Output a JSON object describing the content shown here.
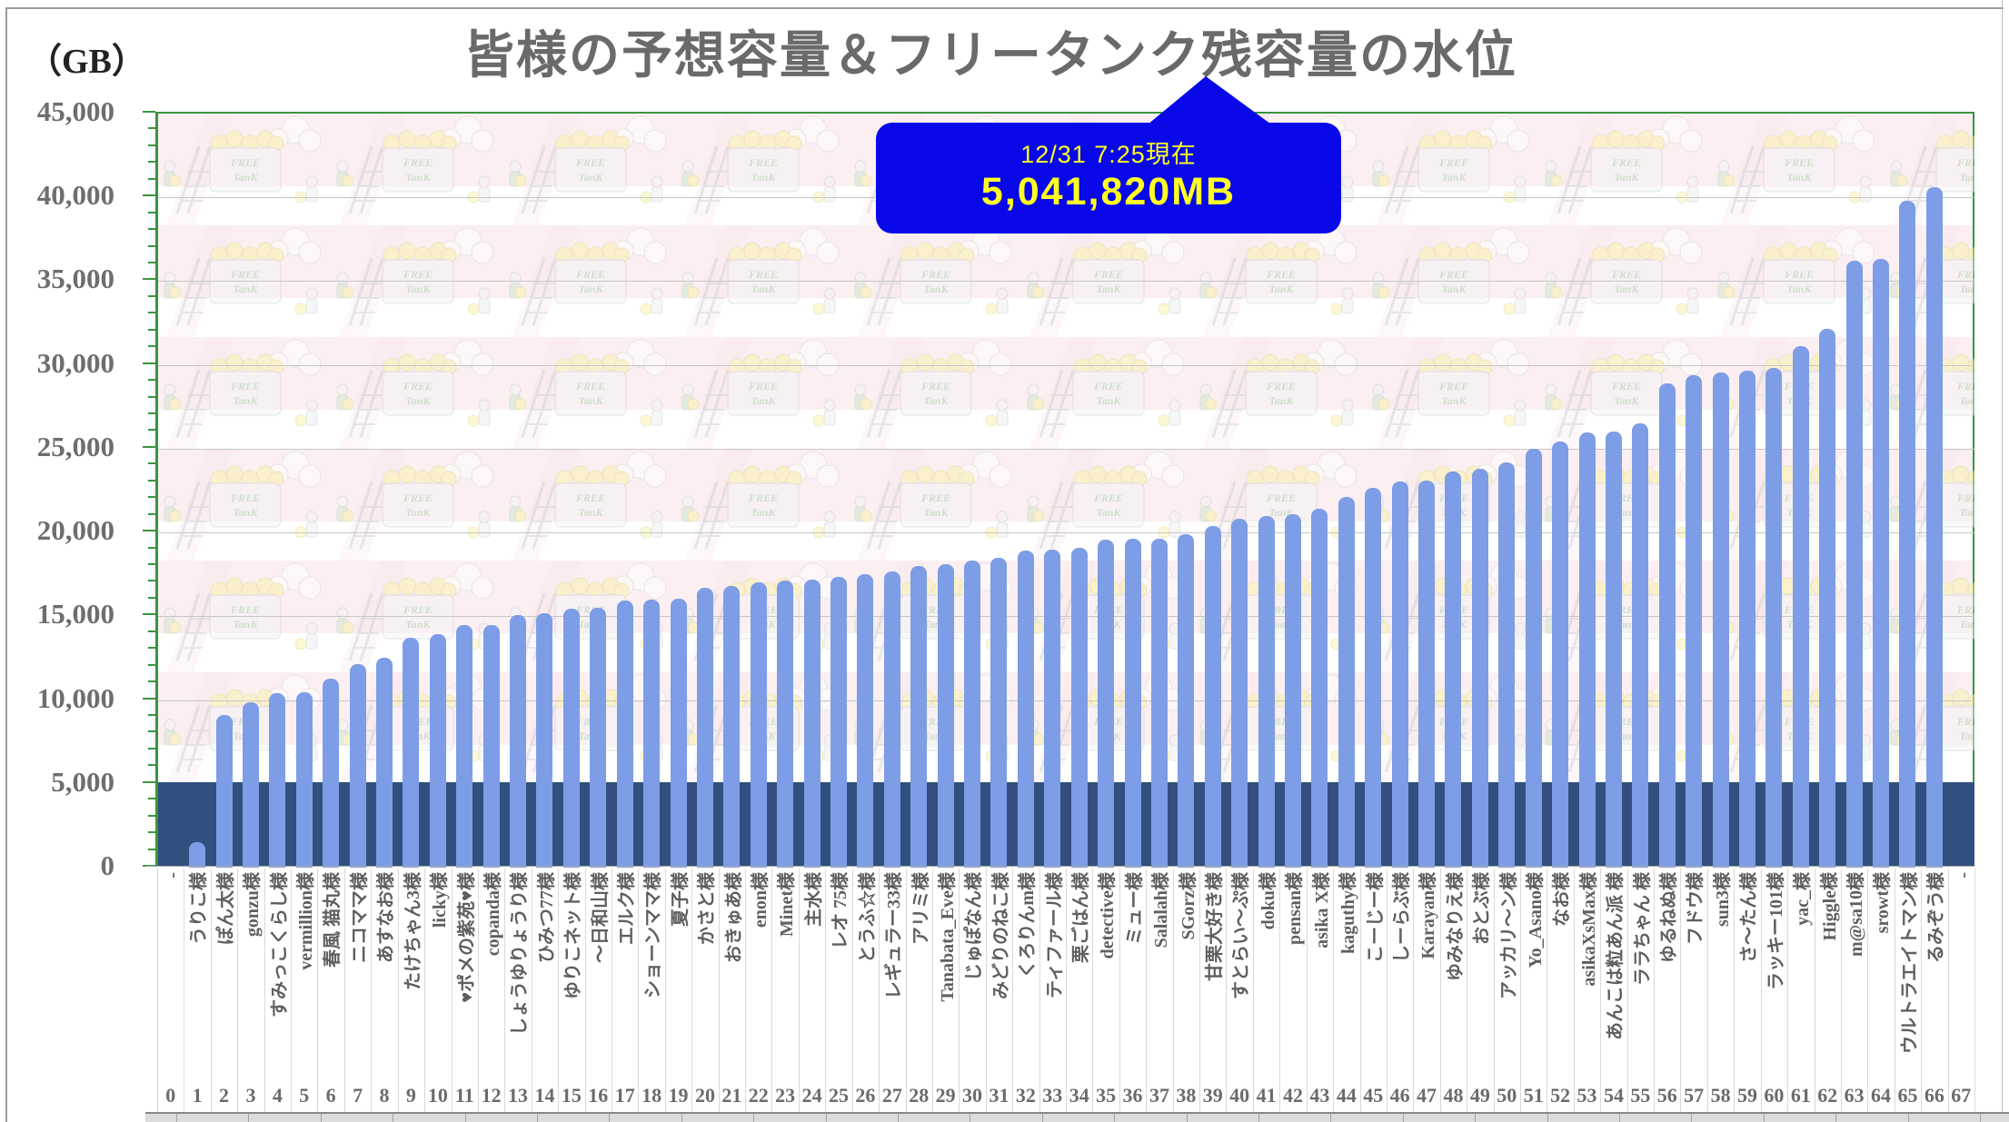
{
  "title": "皆様の予想容量＆フリータンク残容量の水位",
  "y_axis": {
    "unit_label": "（GB）",
    "ticks": [
      "45,000",
      "40,000",
      "35,000",
      "30,000",
      "25,000",
      "20,000",
      "15,000",
      "10,000",
      "5,000",
      "0"
    ]
  },
  "callout": {
    "line1": "12/31 7:25現在",
    "line2": "5,041,820MB",
    "bg_color": "#0808e8",
    "text_color": "#ffff22"
  },
  "colors": {
    "bar": "#7d9de6",
    "tank_band": "#31507f",
    "axis_green": "#3a9440",
    "gridline": "#c6c6c6",
    "title_gray": "#6a6a6a"
  },
  "chart_data": {
    "type": "bar",
    "title": "皆様の予想容量＆フリータンク残容量の水位",
    "ylabel": "GB",
    "ylim": [
      0,
      45000
    ],
    "gridline_interval": 5000,
    "grid": true,
    "tank_level_band": {
      "from": 0,
      "to": 5000,
      "note": "フリータンク残容量の水位",
      "current": "5,041,820MB"
    },
    "categories": [
      "-",
      "うりこ様",
      "ぽん太様",
      "gonzu様",
      "すみっこくらし様",
      "vermillion様",
      "春風 猫丸様",
      "ニコママ様",
      "あすなお様",
      "たけちゃん3様",
      "licky様",
      "♥ポメの紫苑♥様",
      "copanda様",
      "しょうゆりょうり様",
      "ひみつ77様",
      "ゆりこネット様",
      "〜日和山様",
      "エルク様",
      "ショーンママ様",
      "夏子様",
      "かさと様",
      "おきゅあ様",
      "enon様",
      "Minet様",
      "主水様",
      "レオ 75様",
      "とうふ☆様",
      "レギュラー33様",
      "アリミ様",
      "Tanabata_Eve様",
      "じゅぽなん様",
      "みどりのねこ様",
      "くろりんm様",
      "ティファール様",
      "栗ごはん様",
      "detective様",
      "ミュー様",
      "Salalah様",
      "SGorz様",
      "甘栗大好き様",
      "すとらい〜ぷ様",
      "doku様",
      "pensan様",
      "asika X様",
      "kaguthy様",
      "こーじー様",
      "しーらぶ様",
      "Karayan様",
      "ゆみなりえ様",
      "おとぶ様",
      "アッカリ〜ン様",
      "Yo_Asano様",
      "なお様",
      "asikaXsMax様",
      "あんこは粒あん派 様",
      "ララちゃん 様",
      "ゆるねぬ様",
      "フドウ様",
      "sun3様",
      "さ〜たん様",
      "ラッキー101様",
      "yac_様",
      "Higgle様",
      "m@sa10様",
      "srowt様",
      "ウルトラエイトマン様",
      "るみぞう様",
      "-"
    ],
    "indices": [
      "0",
      "1",
      "2",
      "3",
      "4",
      "5",
      "6",
      "7",
      "8",
      "9",
      "10",
      "11",
      "12",
      "13",
      "14",
      "15",
      "16",
      "17",
      "18",
      "19",
      "20",
      "21",
      "22",
      "23",
      "24",
      "25",
      "26",
      "27",
      "28",
      "29",
      "30",
      "31",
      "32",
      "33",
      "34",
      "35",
      "36",
      "37",
      "38",
      "39",
      "40",
      "41",
      "42",
      "43",
      "44",
      "45",
      "46",
      "47",
      "48",
      "49",
      "50",
      "51",
      "52",
      "53",
      "54",
      "55",
      "56",
      "57",
      "58",
      "59",
      "60",
      "61",
      "62",
      "63",
      "64",
      "65",
      "66",
      "67"
    ],
    "values": [
      0,
      1500,
      9100,
      9850,
      10400,
      10450,
      11300,
      12150,
      12500,
      13700,
      13950,
      14450,
      14500,
      15050,
      15200,
      15450,
      15500,
      15950,
      16000,
      16050,
      16700,
      16800,
      17000,
      17150,
      17200,
      17350,
      17500,
      17700,
      18000,
      18100,
      18300,
      18500,
      18900,
      19000,
      19100,
      19550,
      19600,
      19600,
      19900,
      20400,
      20800,
      21000,
      21100,
      21400,
      22100,
      22650,
      23050,
      23100,
      23650,
      23800,
      24200,
      25000,
      25450,
      25950,
      26000,
      26500,
      28900,
      29400,
      29550,
      29650,
      29800,
      31100,
      32150,
      36200,
      36300,
      39800,
      40600,
      0
    ]
  }
}
